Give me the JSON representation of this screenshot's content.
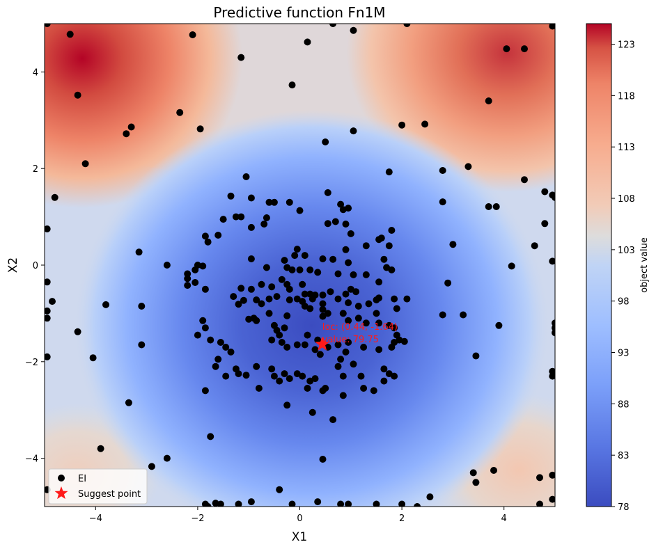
{
  "chart_data": {
    "type": "scatter",
    "title": "Predictive function Fn1M",
    "xlabel": "X1",
    "ylabel": "X2",
    "xlim": [
      -5,
      5
    ],
    "ylim": [
      -5,
      5
    ],
    "xticks": [
      "−4",
      "−2",
      "0",
      "2",
      "4"
    ],
    "yticks": [
      "−4",
      "−2",
      "0",
      "2",
      "4"
    ],
    "xtick_values": [
      -4,
      -2,
      0,
      2,
      4
    ],
    "ytick_values": [
      -4,
      -2,
      0,
      2,
      4
    ],
    "colorbar": {
      "label": "object value",
      "colormap": "coolwarm",
      "range": [
        78,
        125
      ],
      "ticks": [
        "78",
        "83",
        "88",
        "93",
        "98",
        "103",
        "108",
        "113",
        "118",
        "123"
      ],
      "tick_values": [
        78,
        83,
        88,
        93,
        98,
        103,
        108,
        113,
        118,
        123
      ]
    },
    "surface": {
      "description_values": "contour fill of predicted objective value",
      "min_value": 78,
      "max_value": 125,
      "minimum_near": [
        0.4,
        -1.4
      ],
      "peaks": [
        {
          "x": -4.2,
          "y": 4.3,
          "value": 124
        },
        {
          "x": 4.2,
          "y": 4.4,
          "value": 121
        },
        {
          "x": 4.2,
          "y": -4.2,
          "value": 104
        },
        {
          "x": -4.0,
          "y": -4.3,
          "value": 103
        }
      ]
    },
    "series": [
      {
        "name": "EI",
        "marker": "circle",
        "color": "#000000",
        "points": [
          [
            -4.95,
            5.0
          ],
          [
            -4.5,
            4.78
          ],
          [
            -2.1,
            4.77
          ],
          [
            0.15,
            4.62
          ],
          [
            0.65,
            5.0
          ],
          [
            1.05,
            4.86
          ],
          [
            2.1,
            5.0
          ],
          [
            4.05,
            4.48
          ],
          [
            4.4,
            4.48
          ],
          [
            4.95,
            4.95
          ],
          [
            -1.15,
            4.3
          ],
          [
            -4.35,
            3.52
          ],
          [
            -0.15,
            3.73
          ],
          [
            3.7,
            3.4
          ],
          [
            -2.35,
            3.16
          ],
          [
            -3.3,
            2.86
          ],
          [
            -3.4,
            2.72
          ],
          [
            -1.95,
            2.82
          ],
          [
            1.05,
            2.78
          ],
          [
            2.0,
            2.9
          ],
          [
            2.45,
            2.92
          ],
          [
            0.5,
            2.55
          ],
          [
            -4.2,
            2.1
          ],
          [
            -4.8,
            1.4
          ],
          [
            -1.05,
            1.83
          ],
          [
            1.75,
            1.93
          ],
          [
            2.8,
            1.96
          ],
          [
            3.3,
            2.04
          ],
          [
            4.4,
            1.77
          ],
          [
            4.8,
            1.52
          ],
          [
            4.95,
            1.45
          ],
          [
            5.0,
            1.4
          ],
          [
            -4.95,
            0.75
          ],
          [
            -3.15,
            0.27
          ],
          [
            -2.6,
            0.0
          ],
          [
            4.15,
            -0.02
          ],
          [
            4.95,
            0.08
          ],
          [
            4.6,
            0.4
          ],
          [
            3.0,
            0.43
          ],
          [
            4.8,
            0.86
          ],
          [
            3.7,
            1.21
          ],
          [
            3.85,
            1.21
          ],
          [
            2.8,
            1.31
          ],
          [
            -1.35,
            1.43
          ],
          [
            -0.95,
            1.39
          ],
          [
            -0.6,
            1.3
          ],
          [
            -0.5,
            1.3
          ],
          [
            -0.2,
            1.3
          ],
          [
            0.0,
            1.13
          ],
          [
            0.55,
            1.5
          ],
          [
            0.8,
            1.26
          ],
          [
            0.85,
            1.15
          ],
          [
            0.95,
            1.18
          ],
          [
            0.7,
            0.9
          ],
          [
            0.9,
            0.85
          ],
          [
            0.55,
            0.86
          ],
          [
            1.0,
            0.65
          ],
          [
            1.3,
            0.4
          ],
          [
            1.55,
            0.53
          ],
          [
            1.6,
            0.56
          ],
          [
            1.8,
            0.72
          ],
          [
            1.75,
            0.4
          ],
          [
            1.65,
            0.12
          ],
          [
            1.7,
            -0.05
          ],
          [
            1.8,
            -0.1
          ],
          [
            -1.5,
            0.95
          ],
          [
            -1.25,
            1.0
          ],
          [
            -1.15,
            1.0
          ],
          [
            -0.95,
            0.78
          ],
          [
            -0.7,
            0.85
          ],
          [
            -0.65,
            0.98
          ],
          [
            -1.85,
            0.6
          ],
          [
            -1.6,
            0.62
          ],
          [
            -1.8,
            0.48
          ],
          [
            -2.0,
            0.0
          ],
          [
            -2.05,
            -0.1
          ],
          [
            -2.2,
            -0.18
          ],
          [
            -2.2,
            -0.28
          ],
          [
            -2.05,
            -0.36
          ],
          [
            -2.2,
            -0.42
          ],
          [
            -1.85,
            -0.5
          ],
          [
            -1.9,
            -0.02
          ],
          [
            -0.95,
            0.13
          ],
          [
            -0.65,
            -0.05
          ],
          [
            -0.3,
            0.1
          ],
          [
            -0.1,
            0.2
          ],
          [
            -0.05,
            0.33
          ],
          [
            0.1,
            0.2
          ],
          [
            -0.25,
            -0.05
          ],
          [
            -0.15,
            -0.1
          ],
          [
            0.0,
            -0.1
          ],
          [
            0.2,
            -0.1
          ],
          [
            0.35,
            -0.15
          ],
          [
            0.45,
            0.13
          ],
          [
            0.65,
            0.12
          ],
          [
            0.9,
            0.32
          ],
          [
            0.95,
            0.05
          ],
          [
            0.75,
            -0.18
          ],
          [
            1.05,
            -0.2
          ],
          [
            1.3,
            -0.2
          ],
          [
            1.55,
            -0.35
          ],
          [
            1.55,
            -0.68
          ],
          [
            1.5,
            -0.72
          ],
          [
            1.35,
            -0.8
          ],
          [
            -0.35,
            -0.3
          ],
          [
            -0.25,
            -0.4
          ],
          [
            -0.55,
            -0.45
          ],
          [
            -0.75,
            -0.4
          ],
          [
            -0.95,
            -0.5
          ],
          [
            -1.15,
            -0.48
          ],
          [
            -1.3,
            -0.65
          ],
          [
            -1.1,
            -0.73
          ],
          [
            -1.2,
            -0.81
          ],
          [
            -0.85,
            -0.72
          ],
          [
            -0.75,
            -0.8
          ],
          [
            -0.6,
            -0.7
          ],
          [
            -0.45,
            -0.65
          ],
          [
            -0.2,
            -0.5
          ],
          [
            0.05,
            -0.4
          ],
          [
            0.1,
            -0.6
          ],
          [
            0.2,
            -0.6
          ],
          [
            0.05,
            -0.75
          ],
          [
            0.3,
            -0.62
          ],
          [
            0.45,
            -0.62
          ],
          [
            0.6,
            -0.55
          ],
          [
            0.9,
            -0.6
          ],
          [
            1.0,
            -0.5
          ],
          [
            1.1,
            -0.55
          ],
          [
            0.75,
            -0.7
          ],
          [
            0.95,
            -0.78
          ],
          [
            1.15,
            -0.85
          ],
          [
            1.5,
            -1.0
          ],
          [
            1.85,
            -0.7
          ],
          [
            1.9,
            -0.9
          ],
          [
            2.1,
            -0.7
          ],
          [
            -0.2,
            -0.72
          ],
          [
            -0.05,
            -0.7
          ],
          [
            0.25,
            -0.7
          ],
          [
            0.45,
            -0.8
          ],
          [
            0.1,
            -0.85
          ],
          [
            0.2,
            -0.9
          ],
          [
            0.45,
            -0.92
          ],
          [
            0.55,
            -1.0
          ],
          [
            0.45,
            -1.06
          ],
          [
            0.85,
            -1.0
          ],
          [
            0.95,
            -1.15
          ],
          [
            1.15,
            -1.1
          ],
          [
            1.3,
            -1.2
          ],
          [
            1.55,
            -1.2
          ],
          [
            1.75,
            -1.25
          ],
          [
            1.85,
            -1.3
          ],
          [
            1.9,
            -1.45
          ],
          [
            1.95,
            -1.55
          ],
          [
            2.05,
            -1.58
          ],
          [
            1.85,
            -1.6
          ],
          [
            1.8,
            -1.7
          ],
          [
            1.55,
            -1.75
          ],
          [
            1.25,
            -1.7
          ],
          [
            0.95,
            -1.6
          ],
          [
            0.75,
            -1.65
          ],
          [
            0.9,
            -1.8
          ],
          [
            -1.0,
            -1.12
          ],
          [
            -0.9,
            -1.1
          ],
          [
            -0.85,
            -1.15
          ],
          [
            -0.6,
            -1.0
          ],
          [
            -0.25,
            -1.05
          ],
          [
            -0.5,
            -1.25
          ],
          [
            -0.45,
            -1.35
          ],
          [
            -0.3,
            -1.3
          ],
          [
            -0.4,
            -1.45
          ],
          [
            -0.55,
            -1.55
          ],
          [
            -0.35,
            -1.6
          ],
          [
            -0.25,
            -1.7
          ],
          [
            -0.05,
            -1.65
          ],
          [
            0.1,
            -1.65
          ],
          [
            0.15,
            -1.45
          ],
          [
            0.35,
            -1.55
          ],
          [
            0.3,
            -1.75
          ],
          [
            0.55,
            -1.7
          ],
          [
            0.4,
            -1.85
          ],
          [
            0.8,
            -1.95
          ],
          [
            0.75,
            -2.1
          ],
          [
            -2.0,
            -1.45
          ],
          [
            -1.85,
            -1.3
          ],
          [
            -1.9,
            -1.15
          ],
          [
            -1.75,
            -1.55
          ],
          [
            -1.55,
            -1.6
          ],
          [
            -1.45,
            -1.7
          ],
          [
            -1.35,
            -1.8
          ],
          [
            -1.6,
            -1.95
          ],
          [
            -1.65,
            -2.1
          ],
          [
            -1.45,
            -2.3
          ],
          [
            -1.25,
            -2.15
          ],
          [
            -1.2,
            -2.25
          ],
          [
            -1.05,
            -2.28
          ],
          [
            -0.85,
            -2.1
          ],
          [
            -0.8,
            -2.55
          ],
          [
            -0.55,
            -2.15
          ],
          [
            -0.5,
            -2.3
          ],
          [
            -0.4,
            -2.4
          ],
          [
            -0.3,
            -2.25
          ],
          [
            -0.2,
            -2.35
          ],
          [
            -0.05,
            -2.25
          ],
          [
            0.05,
            -2.3
          ],
          [
            0.2,
            -2.4
          ],
          [
            0.15,
            -2.55
          ],
          [
            0.3,
            -2.35
          ],
          [
            0.45,
            -2.6
          ],
          [
            0.5,
            -2.55
          ],
          [
            0.85,
            -2.3
          ],
          [
            1.05,
            -2.05
          ],
          [
            1.2,
            -2.3
          ],
          [
            1.25,
            -2.55
          ],
          [
            1.45,
            -2.6
          ],
          [
            1.65,
            -2.4
          ],
          [
            1.65,
            -2.15
          ],
          [
            1.75,
            -2.25
          ],
          [
            1.85,
            -2.3
          ],
          [
            -1.85,
            -2.6
          ],
          [
            -1.75,
            -3.55
          ],
          [
            -0.25,
            -2.9
          ],
          [
            0.25,
            -3.05
          ],
          [
            0.65,
            -3.2
          ],
          [
            0.85,
            -2.7
          ],
          [
            -4.95,
            -1.9
          ],
          [
            -4.95,
            -0.95
          ],
          [
            -4.95,
            -1.1
          ],
          [
            -4.95,
            -0.35
          ],
          [
            -4.85,
            -0.75
          ],
          [
            -4.35,
            -1.38
          ],
          [
            -3.8,
            -0.82
          ],
          [
            -4.05,
            -1.92
          ],
          [
            -3.1,
            -1.65
          ],
          [
            -3.1,
            -0.85
          ],
          [
            -3.35,
            -2.85
          ],
          [
            -3.9,
            -3.8
          ],
          [
            2.8,
            -1.03
          ],
          [
            3.2,
            -1.03
          ],
          [
            3.9,
            -1.25
          ],
          [
            3.45,
            -1.88
          ],
          [
            2.9,
            -0.37
          ],
          [
            5.0,
            -1.2
          ],
          [
            5.0,
            -1.3
          ],
          [
            5.0,
            -1.4
          ],
          [
            4.95,
            -2.2
          ],
          [
            4.95,
            -2.3
          ],
          [
            -2.6,
            -4.0
          ],
          [
            -2.9,
            -4.17
          ],
          [
            -4.95,
            -4.65
          ],
          [
            -1.85,
            -4.95
          ],
          [
            -1.65,
            -4.93
          ],
          [
            -1.55,
            -4.95
          ],
          [
            -1.8,
            -5.0
          ],
          [
            -1.2,
            -4.95
          ],
          [
            -0.95,
            -4.9
          ],
          [
            -0.4,
            -4.65
          ],
          [
            -0.15,
            -4.95
          ],
          [
            0.35,
            -4.9
          ],
          [
            0.45,
            -4.02
          ],
          [
            0.8,
            -4.95
          ],
          [
            0.95,
            -4.95
          ],
          [
            1.5,
            -4.95
          ],
          [
            2.0,
            -4.95
          ],
          [
            2.3,
            -5.0
          ],
          [
            2.55,
            -4.8
          ],
          [
            3.4,
            -4.3
          ],
          [
            3.45,
            -4.5
          ],
          [
            3.8,
            -4.25
          ],
          [
            4.7,
            -4.4
          ],
          [
            4.95,
            -4.35
          ],
          [
            4.95,
            -4.85
          ],
          [
            4.7,
            -4.95
          ]
        ]
      },
      {
        "name": "Suggest point",
        "marker": "star",
        "color": "#ff1a1a",
        "points": [
          [
            0.44,
            -1.64
          ]
        ]
      }
    ],
    "annotation": {
      "loc_text": "loc: (0.44, -1.64)",
      "value_text": "value: 79.75",
      "x": 0.44,
      "y": -1.64,
      "color": "#ff1a1a"
    },
    "legend": {
      "placement": "lower-left",
      "entries": [
        "EI",
        "Suggest point"
      ]
    },
    "grid": false
  }
}
